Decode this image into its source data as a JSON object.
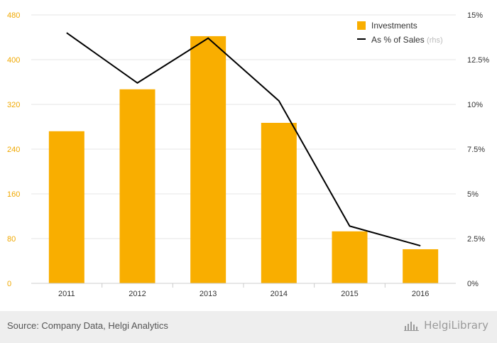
{
  "chart_data": {
    "type": "bar",
    "categories": [
      "2011",
      "2012",
      "2013",
      "2014",
      "2015",
      "2016"
    ],
    "series": [
      {
        "name": "Investments",
        "type": "bar",
        "axis": "left",
        "color": "#f9ae00",
        "values": [
          272,
          347,
          442,
          287,
          93,
          61
        ]
      },
      {
        "name": "As % of Sales",
        "type": "line",
        "axis": "right",
        "color": "#000000",
        "values": [
          14.0,
          11.2,
          13.7,
          10.2,
          3.2,
          2.1
        ]
      }
    ],
    "left_axis": {
      "ylim": [
        0,
        480
      ],
      "ticks": [
        "0",
        "80",
        "160",
        "240",
        "320",
        "400",
        "480"
      ]
    },
    "right_axis": {
      "ylim": [
        0,
        15
      ],
      "ticks": [
        "0%",
        "2.5%",
        "5%",
        "7.5%",
        "10%",
        "12.5%",
        "15%"
      ]
    },
    "legend": {
      "placement": "top-right",
      "note": "(rhs)"
    },
    "grid": true
  },
  "footer": {
    "source": "Source: Company Data, Helgi Analytics",
    "logo_text": "HelgiLibrary",
    "logo_icon": "bar-chart-icon"
  }
}
